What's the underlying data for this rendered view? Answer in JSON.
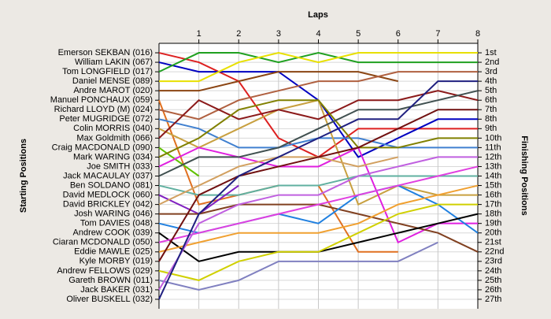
{
  "chart_data": {
    "type": "line",
    "title": "Laps",
    "ylabel": "Starting Positions",
    "y2label": "Finishing Positions",
    "x": [
      0,
      1,
      2,
      3,
      4,
      5,
      6,
      7,
      8
    ],
    "xlim": [
      0,
      8
    ],
    "xticks": [
      1,
      2,
      3,
      4,
      5,
      6,
      7,
      8
    ],
    "ylim": [
      28,
      0
    ],
    "grid": true,
    "y2ticks": [
      {
        "value": 1,
        "label": "1st"
      },
      {
        "value": 2,
        "label": "2nd"
      },
      {
        "value": 3,
        "label": "3rd"
      },
      {
        "value": 4,
        "label": "4th"
      },
      {
        "value": 5,
        "label": "5th"
      },
      {
        "value": 6,
        "label": "6th"
      },
      {
        "value": 7,
        "label": "7th"
      },
      {
        "value": 8,
        "label": "8th"
      },
      {
        "value": 9,
        "label": "9th"
      },
      {
        "value": 10,
        "label": "10th"
      },
      {
        "value": 11,
        "label": "11th"
      },
      {
        "value": 12,
        "label": "12th"
      },
      {
        "value": 13,
        "label": "13th"
      },
      {
        "value": 14,
        "label": "14th"
      },
      {
        "value": 15,
        "label": "15th"
      },
      {
        "value": 16,
        "label": "16th"
      },
      {
        "value": 17,
        "label": "17th"
      },
      {
        "value": 18,
        "label": "18th"
      },
      {
        "value": 19,
        "label": "19th"
      },
      {
        "value": 20,
        "label": "20th"
      },
      {
        "value": 21,
        "label": "21st"
      },
      {
        "value": 22,
        "label": "22nd"
      },
      {
        "value": 23,
        "label": "23rd"
      },
      {
        "value": 24,
        "label": "24th"
      },
      {
        "value": 25,
        "label": "25th"
      },
      {
        "value": 26,
        "label": "26th"
      },
      {
        "value": 27,
        "label": "27th"
      }
    ],
    "series": [
      {
        "name": "Emerson SEKBAN (016)",
        "color": "#dd2020",
        "values": [
          1,
          2,
          4,
          10,
          12,
          9,
          9,
          9,
          9
        ]
      },
      {
        "name": "William LAKIN (067)",
        "color": "#0000c0",
        "values": [
          2,
          3,
          3,
          3,
          6,
          12,
          10,
          8,
          8
        ]
      },
      {
        "name": "Tom LONGFIELD (017)",
        "color": "#20a020",
        "values": [
          3,
          1,
          1,
          2,
          1,
          2,
          2,
          2,
          2
        ]
      },
      {
        "name": "Daniel MENSE (089)",
        "color": "#e8e000",
        "values": [
          4,
          4,
          2,
          1,
          2,
          1,
          1,
          1,
          1
        ]
      },
      {
        "name": "Andre MAROT (020)",
        "color": "#8b4513",
        "values": [
          5,
          5,
          4,
          3,
          3,
          3,
          4,
          null,
          null
        ]
      },
      {
        "name": "Manuel PONCHAUX (059)",
        "color": "#e07020",
        "values": [
          6,
          17,
          16,
          15,
          15,
          22,
          22,
          null,
          null
        ]
      },
      {
        "name": "Richard LLOYD (M) (024)",
        "color": "#b06040",
        "values": [
          7,
          8,
          6,
          5,
          4,
          4,
          3,
          3,
          3
        ]
      },
      {
        "name": "Peter MUGRIDGE (072)",
        "color": "#4080d0",
        "values": [
          8,
          9,
          11,
          11,
          10,
          10,
          11,
          11,
          11
        ]
      },
      {
        "name": "Colin MORRIS (040)",
        "color": "#c8a040",
        "values": [
          9,
          11,
          9,
          7,
          6,
          17,
          15,
          16,
          16
        ]
      },
      {
        "name": "Max Goldmith (066)",
        "color": "#8b1a1a",
        "values": [
          10,
          6,
          8,
          7,
          8,
          6,
          6,
          5,
          6
        ]
      },
      {
        "name": "Craig MACDONALD (090)",
        "color": "#60c000",
        "values": [
          11,
          14,
          null,
          null,
          null,
          null,
          null,
          null,
          null
        ]
      },
      {
        "name": "Mark WARING (034)",
        "color": "#808000",
        "values": [
          12,
          10,
          7,
          6,
          6,
          11,
          11,
          10,
          10
        ]
      },
      {
        "name": "Joe SMITH (033)",
        "color": "#e020e0",
        "values": [
          13,
          11,
          12,
          13,
          13,
          11,
          21,
          19,
          19
        ]
      },
      {
        "name": "Jack MACAULAY (037)",
        "color": "#405050",
        "values": [
          14,
          12,
          12,
          11,
          9,
          7,
          7,
          6,
          5
        ]
      },
      {
        "name": "Ben SOLDANO (081)",
        "color": "#60b0a0",
        "values": [
          15,
          16,
          16,
          15,
          15,
          14,
          14,
          14,
          14
        ]
      },
      {
        "name": "David MEDLOCK (060)",
        "color": "#8020c0",
        "values": [
          16,
          18,
          15,
          null,
          null,
          null,
          null,
          null,
          null
        ]
      },
      {
        "name": "David BRICKLEY (042)",
        "color": "#d2a060",
        "values": [
          17,
          15,
          13,
          12,
          12,
          13,
          12,
          null,
          null
        ]
      },
      {
        "name": "Josh WARING (046)",
        "color": "#804020",
        "values": [
          18,
          18,
          17,
          17,
          17,
          18,
          19,
          20,
          22
        ]
      },
      {
        "name": "Tom DAVIES (048)",
        "color": "#2080e0",
        "values": [
          19,
          20,
          19,
          18,
          19,
          16,
          15,
          17,
          20
        ]
      },
      {
        "name": "Andrew COOK (039)",
        "color": "#000000",
        "values": [
          20,
          23,
          22,
          22,
          22,
          21,
          20,
          19,
          18
        ]
      },
      {
        "name": "Ciaran MCDONALD (050)",
        "color": "#e040e0",
        "values": [
          21,
          20,
          19,
          18,
          17,
          16,
          15,
          14,
          13
        ]
      },
      {
        "name": "Eddie MAWLE (025)",
        "color": "#f0a030",
        "values": [
          22,
          21,
          20,
          20,
          20,
          19,
          17,
          16,
          15
        ]
      },
      {
        "name": "Kyle MORBY (019)",
        "color": "#701010",
        "values": [
          23,
          16,
          14,
          13,
          12,
          11,
          9,
          7,
          7
        ]
      },
      {
        "name": "Andrew FELLOWS (029)",
        "color": "#d0d000",
        "values": [
          24,
          25,
          23,
          22,
          22,
          20,
          18,
          17,
          17
        ]
      },
      {
        "name": "Gareth BROWN (011)",
        "color": "#8080c0",
        "values": [
          25,
          26,
          25,
          23,
          23,
          23,
          23,
          21,
          null
        ]
      },
      {
        "name": "Jack BAKER (031)",
        "color": "#c060e0",
        "values": [
          26,
          19,
          17,
          16,
          16,
          14,
          13,
          12,
          12
        ]
      },
      {
        "name": "Oliver BUSKELL (032)",
        "color": "#202080",
        "values": [
          27,
          18,
          14,
          12,
          10,
          8,
          8,
          4,
          4
        ]
      }
    ]
  }
}
